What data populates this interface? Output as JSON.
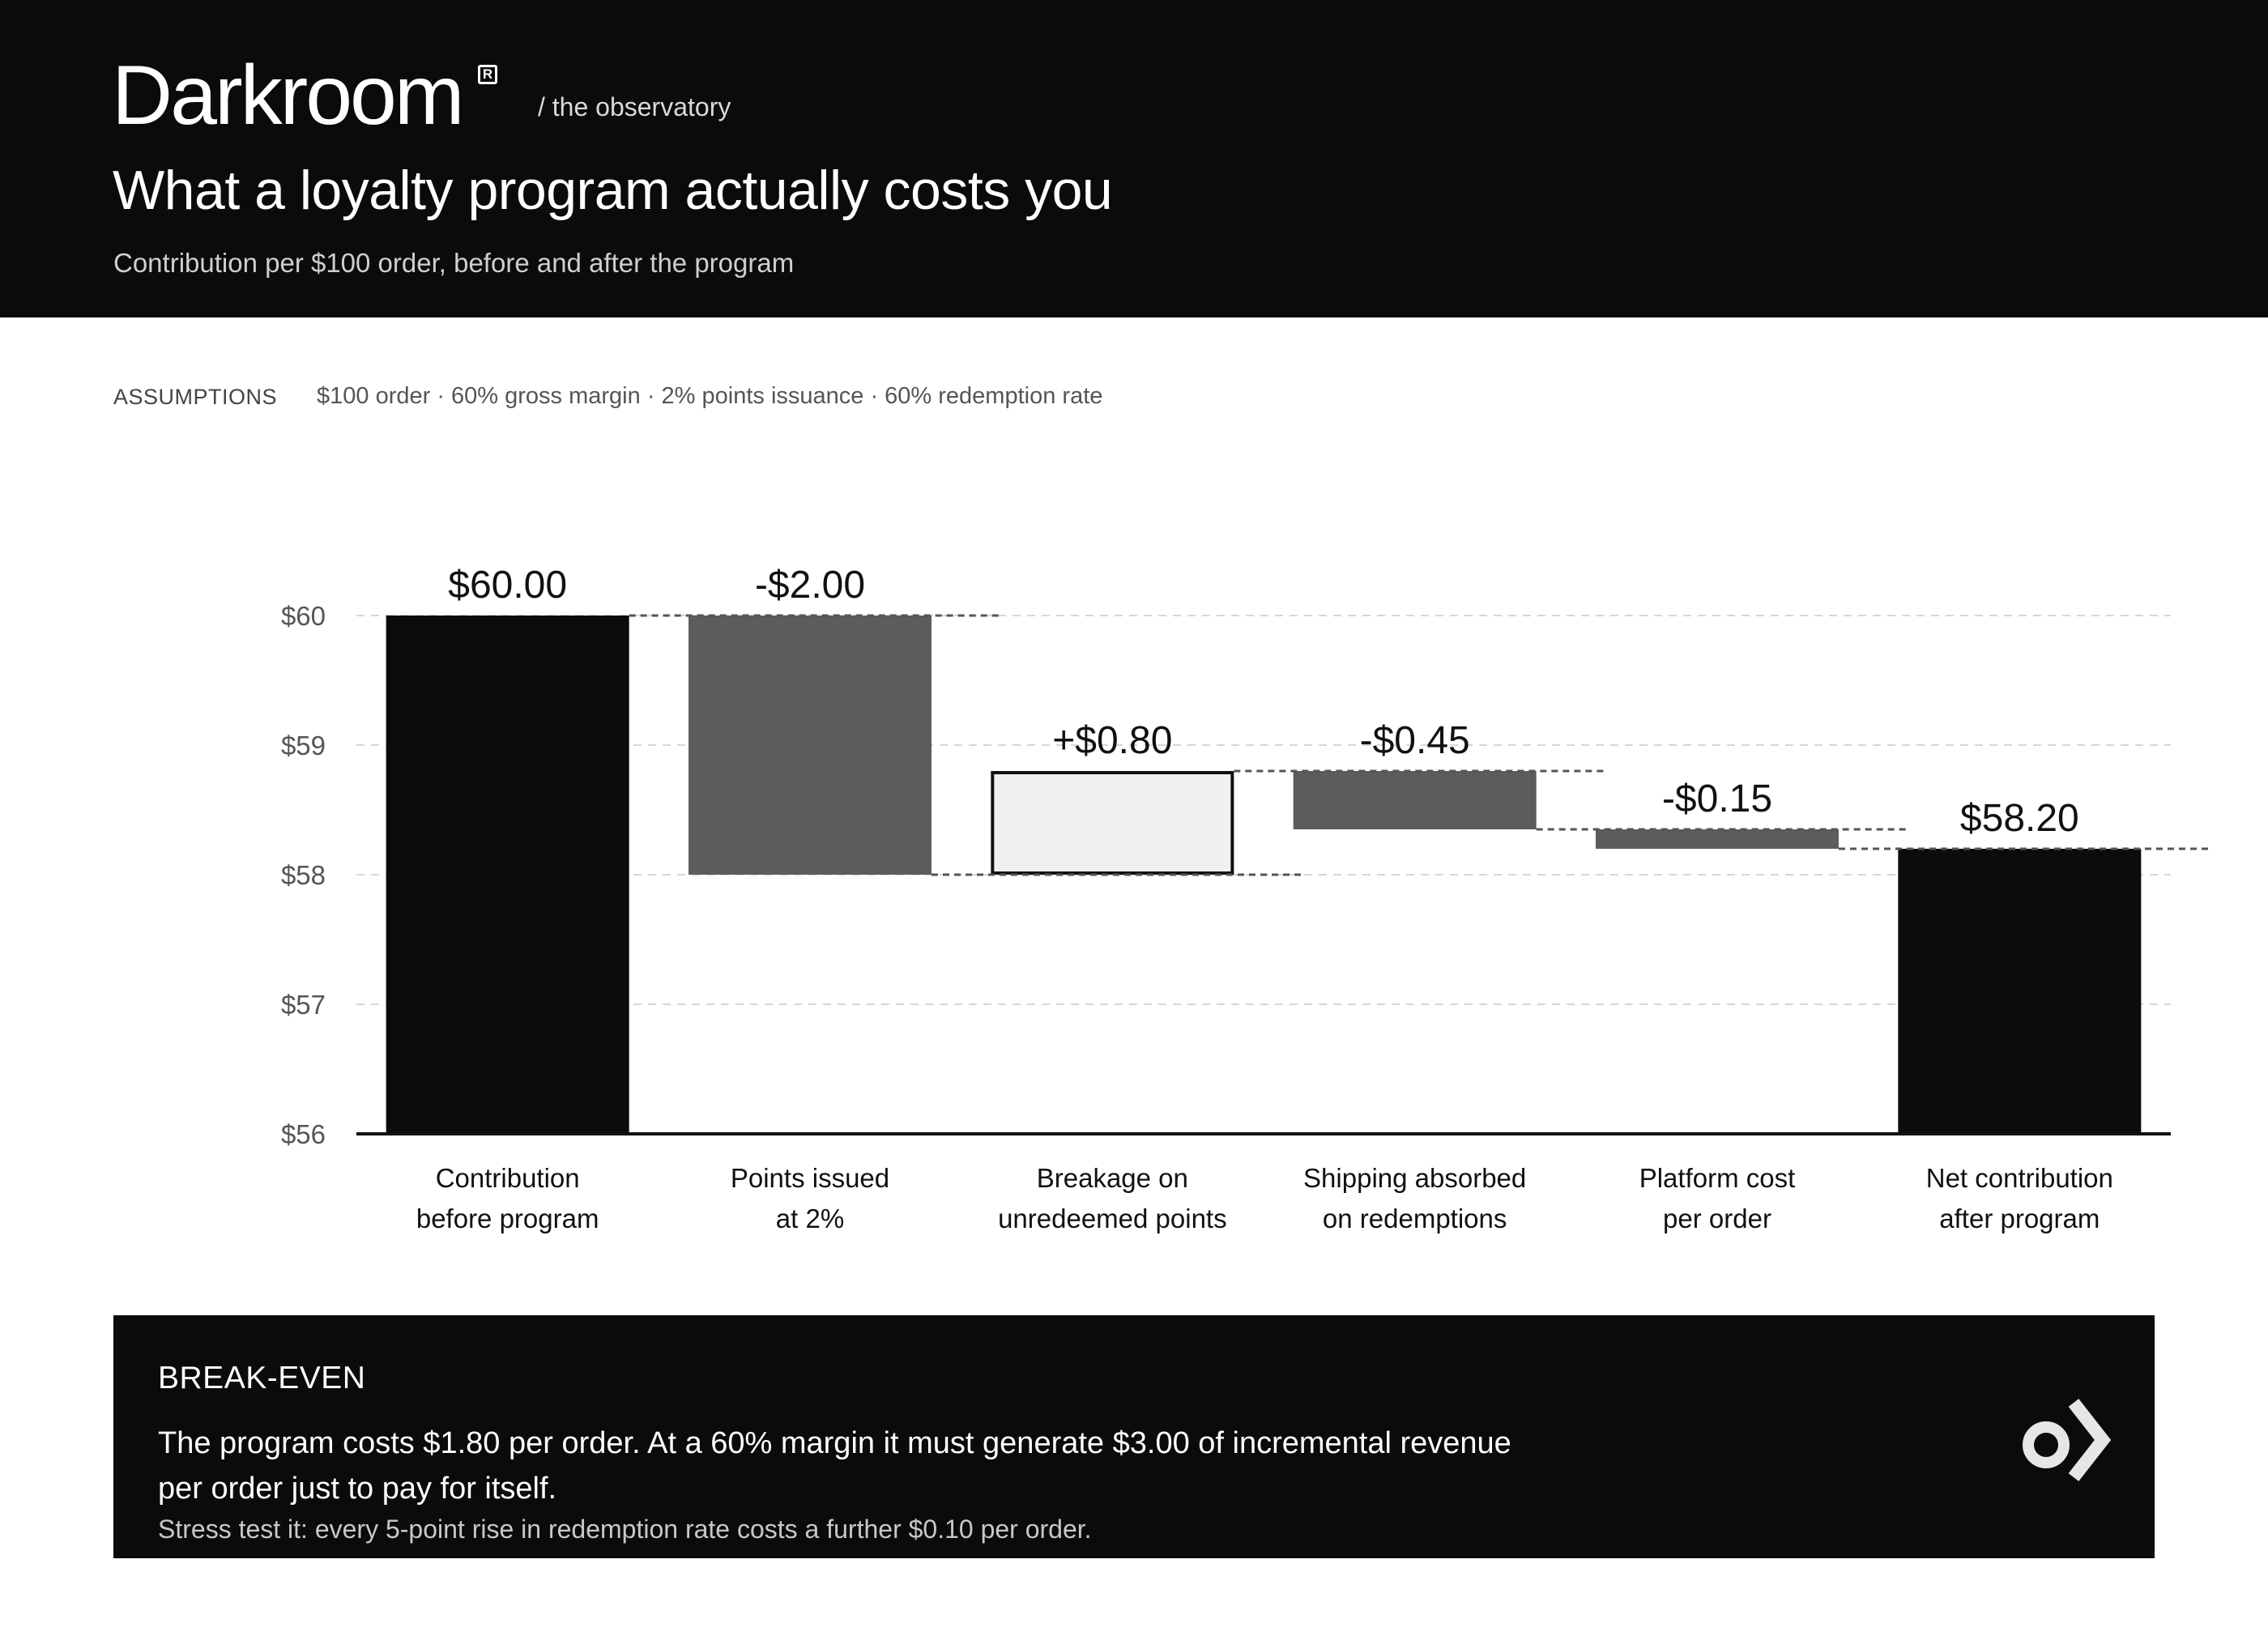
{
  "brand": {
    "name": "Darkroom",
    "registered": "R",
    "tagline": "/ the observatory"
  },
  "header": {
    "title": "What a loyalty program actually costs you",
    "subtitle": "Contribution per $100 order, before and after the program"
  },
  "assumptions": {
    "label": "ASSUMPTIONS",
    "text": "$100 order · 60% gross margin · 2% points issuance · 60% redemption rate"
  },
  "chart_data": {
    "type": "waterfall",
    "yticks": [
      "$56",
      "$57",
      "$58",
      "$59",
      "$60"
    ],
    "ylim": [
      56,
      60
    ],
    "grid": true,
    "categories": [
      [
        "Contribution",
        "before program"
      ],
      [
        "Points issued",
        "at 2%"
      ],
      [
        "Breakage on",
        "unredeemed points"
      ],
      [
        "Shipping absorbed",
        "on redemptions"
      ],
      [
        "Platform cost",
        "per order"
      ],
      [
        "Net contribution",
        "after program"
      ]
    ],
    "steps": [
      {
        "kind": "total",
        "value": 60.0,
        "label": "$60.00"
      },
      {
        "kind": "decrease",
        "value": -2.0,
        "label": "-$2.00"
      },
      {
        "kind": "increase",
        "value": 0.8,
        "label": "+$0.80"
      },
      {
        "kind": "decrease",
        "value": -0.45,
        "label": "-$0.45"
      },
      {
        "kind": "decrease",
        "value": -0.15,
        "label": "-$0.15"
      },
      {
        "kind": "total",
        "value": 58.2,
        "label": "$58.20"
      }
    ],
    "colors": {
      "total": "#0b0b0b",
      "decrease": "#5c5c5c",
      "increase": "#f0f0f0",
      "increase_border": "#111111",
      "grid": "#d6d6d6",
      "connector": "#555555"
    }
  },
  "callout": {
    "label": "BREAK-EVEN",
    "body": "The program costs $1.80 per order. At a 60% margin it must generate $3.00 of incremental revenue per order just to pay for itself.",
    "note": "Stress test it: every 5-point rise in redemption rate costs a further $0.10 per order.",
    "icon": "darkroom-logo-icon"
  }
}
